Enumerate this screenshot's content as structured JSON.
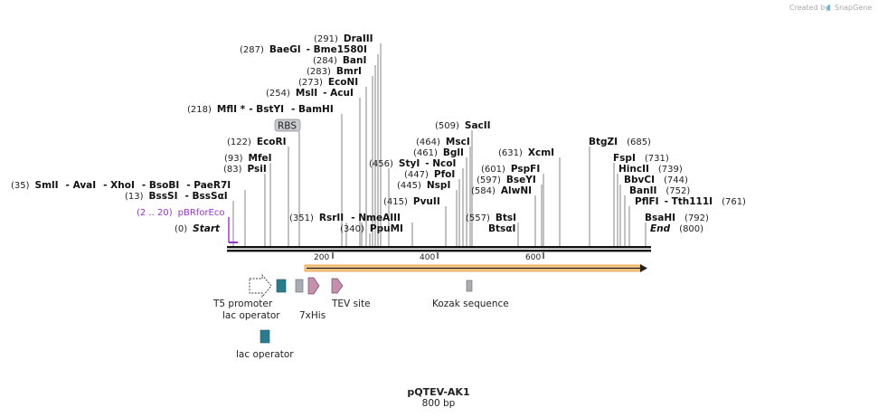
{
  "credit": {
    "text": "Created by",
    "brand": "SnapGene"
  },
  "title": "pQTEV-AK1",
  "length_label": "800 bp",
  "ruler": {
    "ticks": [
      "200",
      "400",
      "600"
    ]
  },
  "enzymes": [
    {
      "pos": "(291)",
      "name": "DraIII"
    },
    {
      "pos": "(287)",
      "name": "BaeGI",
      "name2": "Bme1580I"
    },
    {
      "pos": "(284)",
      "name": "BanI"
    },
    {
      "pos": "(283)",
      "name": "BmrI"
    },
    {
      "pos": "(273)",
      "name": "EcoNI"
    },
    {
      "pos": "(254)",
      "name": "MslI",
      "name2": "AcuI"
    },
    {
      "pos": "(218)",
      "name": "MflI *",
      "name2": "BstYI",
      "name3": "BamHI"
    },
    {
      "pos": "(122)",
      "name": "EcoRI"
    },
    {
      "pos": "(93)",
      "name": "MfeI"
    },
    {
      "pos": "(83)",
      "name": "PsiI"
    },
    {
      "pos": "(35)",
      "name": "SmlI",
      "name2": "AvaI",
      "name3": "XhoI",
      "name4": "BsoBI",
      "name5": "PaeR7I"
    },
    {
      "pos": "(13)",
      "name": "BssSI",
      "name2": "BssSαI"
    },
    {
      "pos": "(351)",
      "name": "RsrII",
      "name2": "NmeAIII"
    },
    {
      "pos": "(340)",
      "name": "PpuMI"
    },
    {
      "pos": "(456)",
      "name": "StyI",
      "name2": "NcoI"
    },
    {
      "pos": "(447)",
      "name": "PfoI"
    },
    {
      "pos": "(445)",
      "name": "NspI"
    },
    {
      "pos": "(415)",
      "name": "PvuII"
    },
    {
      "pos": "(509)",
      "name": "SacII"
    },
    {
      "pos": "(464)",
      "name": "MscI"
    },
    {
      "pos": "(461)",
      "name": "BglI"
    },
    {
      "pos": "(631)",
      "name": "XcmI"
    },
    {
      "pos": "(601)",
      "name": "PspFI"
    },
    {
      "pos": "(597)",
      "name": "BseYI"
    },
    {
      "pos": "(584)",
      "name": "AlwNI"
    },
    {
      "pos": "(557)",
      "name": "BtsI"
    },
    {
      "pos": "",
      "name": "BtsαI"
    },
    {
      "pos": "(685)",
      "name": "BtgZI"
    },
    {
      "pos": "(731)",
      "name": "FspI"
    },
    {
      "pos": "(739)",
      "name": "HincII"
    },
    {
      "pos": "(744)",
      "name": "BbvCI"
    },
    {
      "pos": "(752)",
      "name": "BanII"
    },
    {
      "pos": "(761)",
      "name": "PflFI",
      "name2": "Tth111I"
    },
    {
      "pos": "(792)",
      "name": "BsaHI"
    }
  ],
  "ends": {
    "start": {
      "pos": "(0)",
      "name": "Start"
    },
    "end": {
      "name": "End",
      "pos": "(800)"
    }
  },
  "primer": {
    "range": "(2 .. 20)",
    "name": "pBRforEco"
  },
  "features": {
    "rbs": "RBS",
    "t5_promoter": "T5 promoter",
    "lac_operator_1": "lac operator",
    "lac_operator_2": "lac operator",
    "his": "7xHis",
    "tev": "TEV site",
    "kozak": "Kozak sequence"
  },
  "colors": {
    "lac_operator": "#2a7d8e",
    "his_tev": "#c58fae",
    "grey_feature": "#a9adb3",
    "orf": "#f2ab48",
    "primer": "#9b30d0"
  }
}
